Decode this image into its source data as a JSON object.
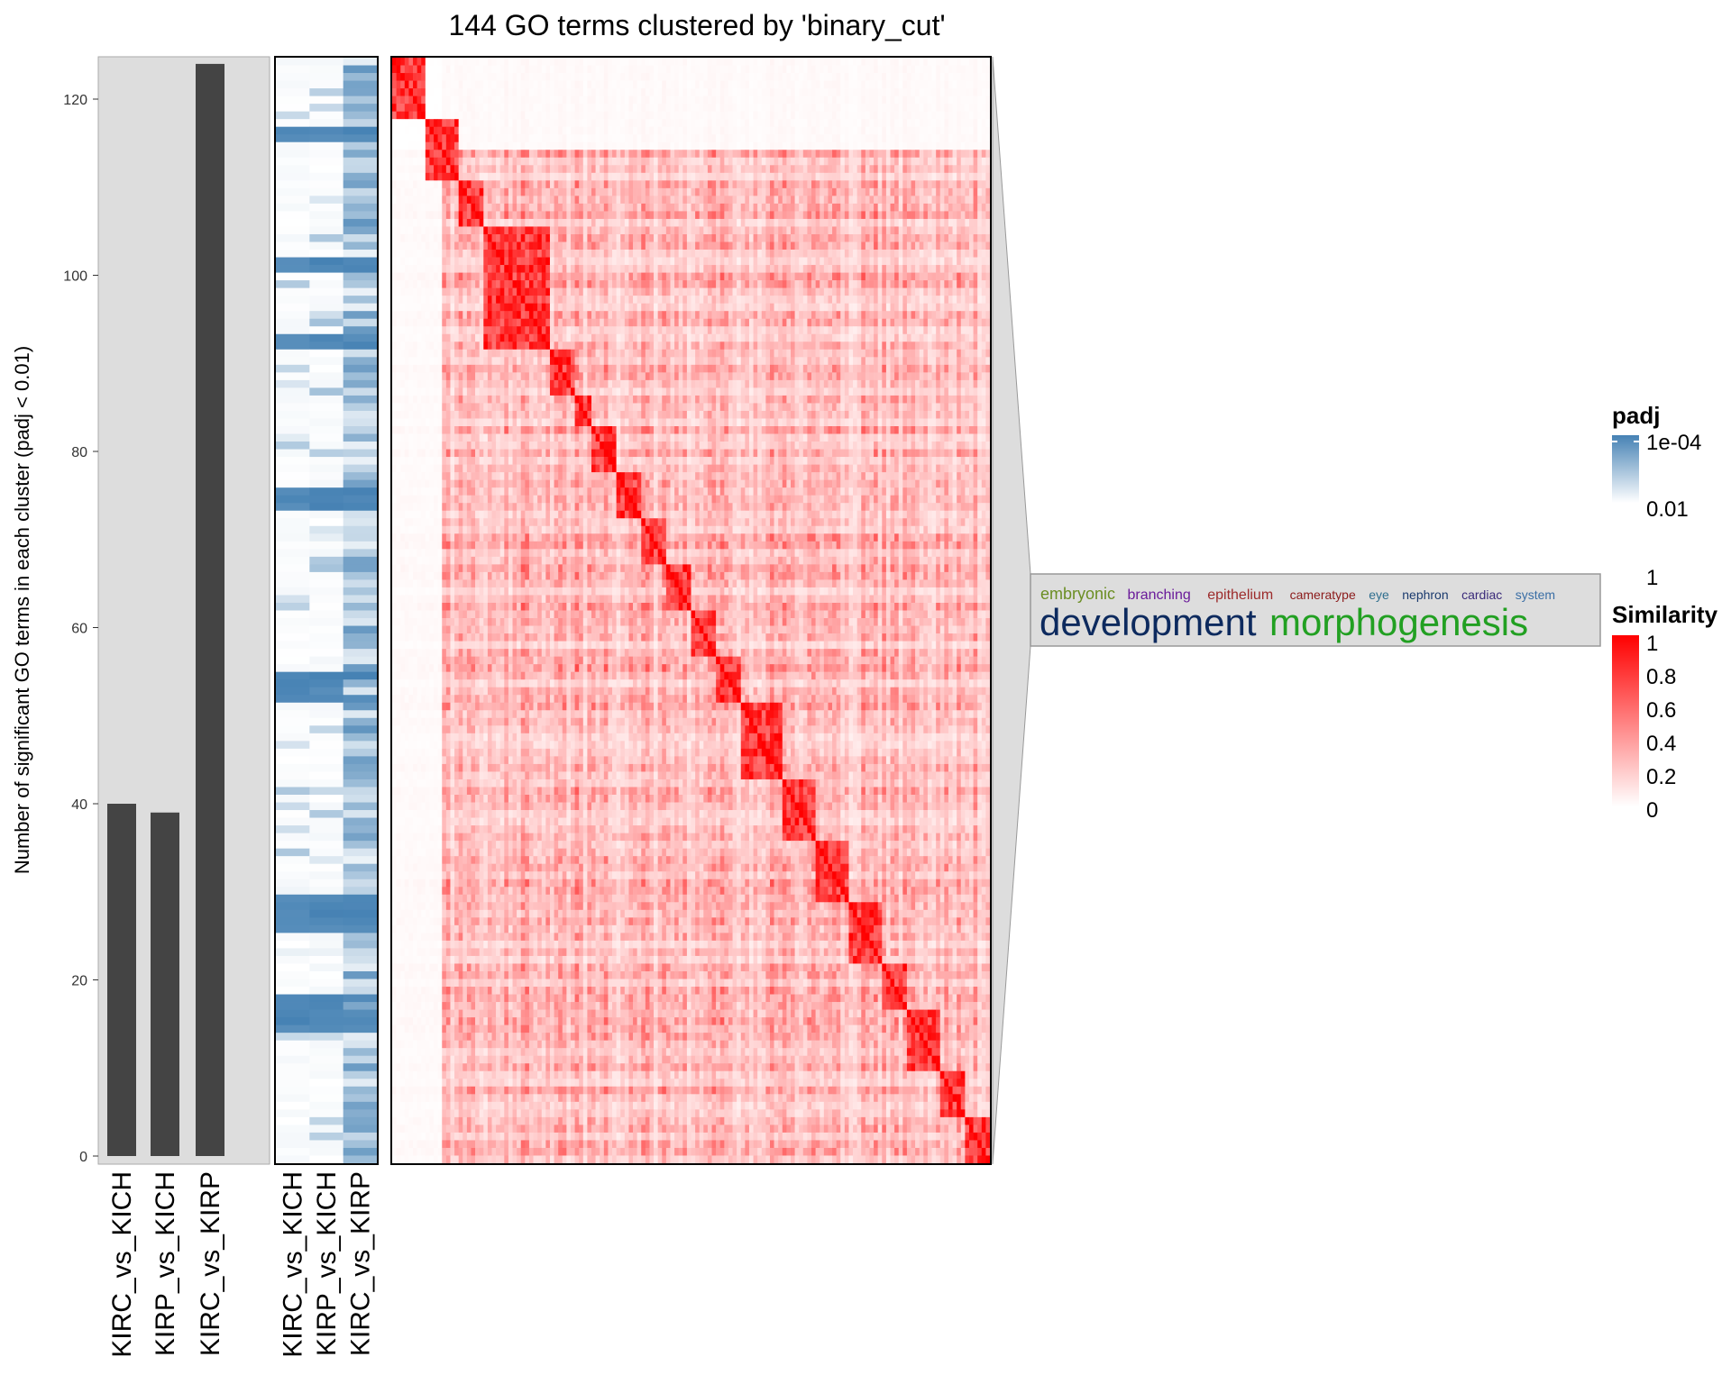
{
  "chart_data": [
    {
      "type": "bar",
      "title": "144 GO terms clustered by 'binary_cut'",
      "ylabel": "Number of significant GO terms in each cluster (padj < 0.01)",
      "ylim": [
        0,
        125
      ],
      "yticks": [
        "0",
        "20",
        "40",
        "60",
        "80",
        "100",
        "120"
      ],
      "categories": [
        "KIRC_vs_KICH",
        "KIRP_vs_KICH",
        "KIRC_vs_KIRP"
      ],
      "values": [
        40,
        39,
        124
      ],
      "colors": {
        "bar": "#444444",
        "panel": "#dddddd"
      }
    },
    {
      "type": "heatmap",
      "name": "padj",
      "columns": [
        "KIRC_vs_KICH",
        "KIRP_vs_KICH",
        "KIRC_vs_KIRP"
      ],
      "n_rows": 144,
      "legend": {
        "title": "padj",
        "labels": [
          "1e-04",
          "0.01",
          "1"
        ],
        "colors": [
          "#4682b4",
          "#ffffff"
        ]
      }
    },
    {
      "type": "heatmap",
      "name": "Similarity",
      "n_terms": 144,
      "clusters": [
        {
          "size": 8
        },
        {
          "size": 8
        },
        {
          "size": 6
        },
        {
          "size": 16
        },
        {
          "size": 6
        },
        {
          "size": 4
        },
        {
          "size": 6
        },
        {
          "size": 6
        },
        {
          "size": 6
        },
        {
          "size": 6
        },
        {
          "size": 6
        },
        {
          "size": 6
        },
        {
          "size": 10
        },
        {
          "size": 8
        },
        {
          "size": 8
        },
        {
          "size": 8
        },
        {
          "size": 6
        },
        {
          "size": 8
        },
        {
          "size": 6
        },
        {
          "size": 4
        }
      ],
      "legend": {
        "title": "Similarity",
        "labels": [
          "1",
          "0.8",
          "0.6",
          "0.4",
          "0.2",
          "0"
        ],
        "colors": [
          "#ff0000",
          "#ffffff"
        ]
      }
    }
  ],
  "keywords": {
    "small": [
      {
        "text": "embryonic",
        "color": "#6b8e23"
      },
      {
        "text": "branching",
        "color": "#6a1b9a"
      },
      {
        "text": "epithelium",
        "color": "#9c2b2b"
      },
      {
        "text": "cameratype",
        "color": "#8b1a1a"
      },
      {
        "text": "eye",
        "color": "#2e6e8e"
      },
      {
        "text": "nephron",
        "color": "#1a3a6e"
      },
      {
        "text": "cardiac",
        "color": "#3a2a7a"
      },
      {
        "text": "system",
        "color": "#3a6ea5"
      }
    ],
    "large": [
      {
        "text": "development",
        "color": "#0d2a5e"
      },
      {
        "text": "morphogenesis",
        "color": "#22a022"
      }
    ]
  }
}
